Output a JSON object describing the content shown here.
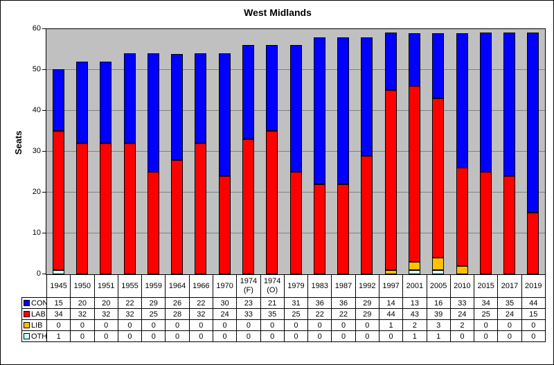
{
  "chart_data": {
    "type": "bar",
    "stacked": true,
    "title": "West Midlands",
    "xlabel": "",
    "ylabel": "Seats",
    "ylim": [
      0,
      60
    ],
    "y_ticks": [
      0,
      10,
      20,
      30,
      40,
      50,
      60
    ],
    "grid": true,
    "plot_bg_color": "#C0C0C0",
    "gridline_color": "#808080",
    "categories": [
      "1945",
      "1950",
      "1951",
      "1955",
      "1959",
      "1964",
      "1966",
      "1970",
      "1974 (F)",
      "1974 (O)",
      "1979",
      "1983",
      "1987",
      "1992",
      "1997",
      "2001",
      "2005",
      "2010",
      "2015",
      "2017",
      "2019"
    ],
    "series": [
      {
        "name": "CON",
        "color": "#0000FF",
        "values": [
          15,
          20,
          20,
          22,
          29,
          26,
          22,
          30,
          23,
          21,
          31,
          36,
          36,
          29,
          14,
          13,
          16,
          33,
          34,
          35,
          44
        ]
      },
      {
        "name": "LAB",
        "color": "#FF0000",
        "values": [
          34,
          32,
          32,
          32,
          25,
          28,
          32,
          24,
          33,
          35,
          25,
          22,
          22,
          29,
          44,
          43,
          39,
          24,
          25,
          24,
          15
        ]
      },
      {
        "name": "LIB",
        "color": "#FFC000",
        "values": [
          0,
          0,
          0,
          0,
          0,
          0,
          0,
          0,
          0,
          0,
          0,
          0,
          0,
          0,
          1,
          2,
          3,
          2,
          0,
          0,
          0
        ]
      },
      {
        "name": "OTH",
        "color": "#CCFFFF",
        "values": [
          1,
          0,
          0,
          0,
          0,
          0,
          0,
          0,
          0,
          0,
          0,
          0,
          0,
          0,
          0,
          1,
          1,
          0,
          0,
          0,
          0
        ]
      }
    ],
    "stack_order_bottom_to_top": [
      "OTH",
      "LIB",
      "LAB",
      "CON"
    ],
    "legend_position": "data-table-left"
  }
}
